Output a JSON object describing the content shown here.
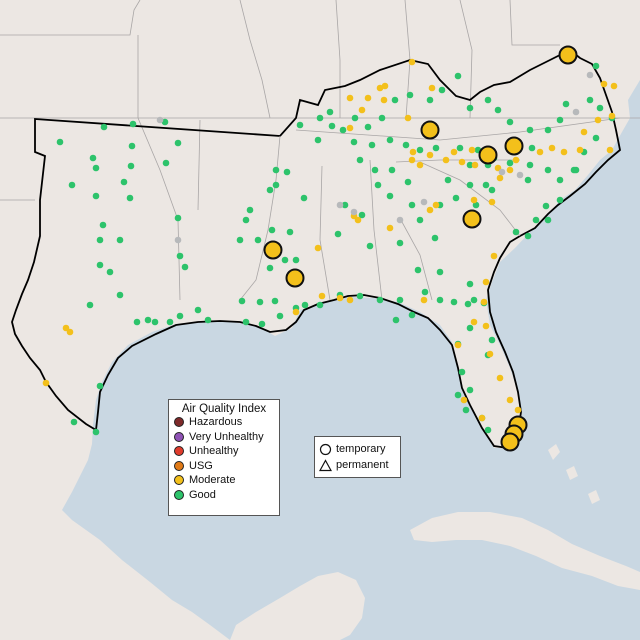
{
  "legend": {
    "title": "Air Quality Index",
    "categories": [
      {
        "label": "Hazardous",
        "color": "#7e2a2a"
      },
      {
        "label": "Very Unhealthy",
        "color": "#8f52b5"
      },
      {
        "label": "Unhealthy",
        "color": "#e03c2c"
      },
      {
        "label": "USG",
        "color": "#e07a17"
      },
      {
        "label": "Moderate",
        "color": "#f3c01b"
      },
      {
        "label": "Good",
        "color": "#2dc36b"
      }
    ]
  },
  "type_legend": {
    "items": [
      {
        "label": "temporary",
        "icon": "circle-icon"
      },
      {
        "label": "permanent",
        "icon": "triangle-icon"
      }
    ]
  },
  "colors": {
    "land": "#ece7e3",
    "water": "#c9d7e2",
    "highlight_border": "#000000",
    "state_border": "#a9a6a6"
  },
  "large_monitors": [
    {
      "category": "Moderate"
    },
    {
      "category": "Moderate"
    },
    {
      "category": "Moderate"
    },
    {
      "category": "Moderate"
    },
    {
      "category": "Moderate"
    },
    {
      "category": "Moderate"
    },
    {
      "category": "Moderate"
    },
    {
      "category": "Moderate"
    },
    {
      "category": "Moderate"
    },
    {
      "category": "Moderate"
    }
  ]
}
